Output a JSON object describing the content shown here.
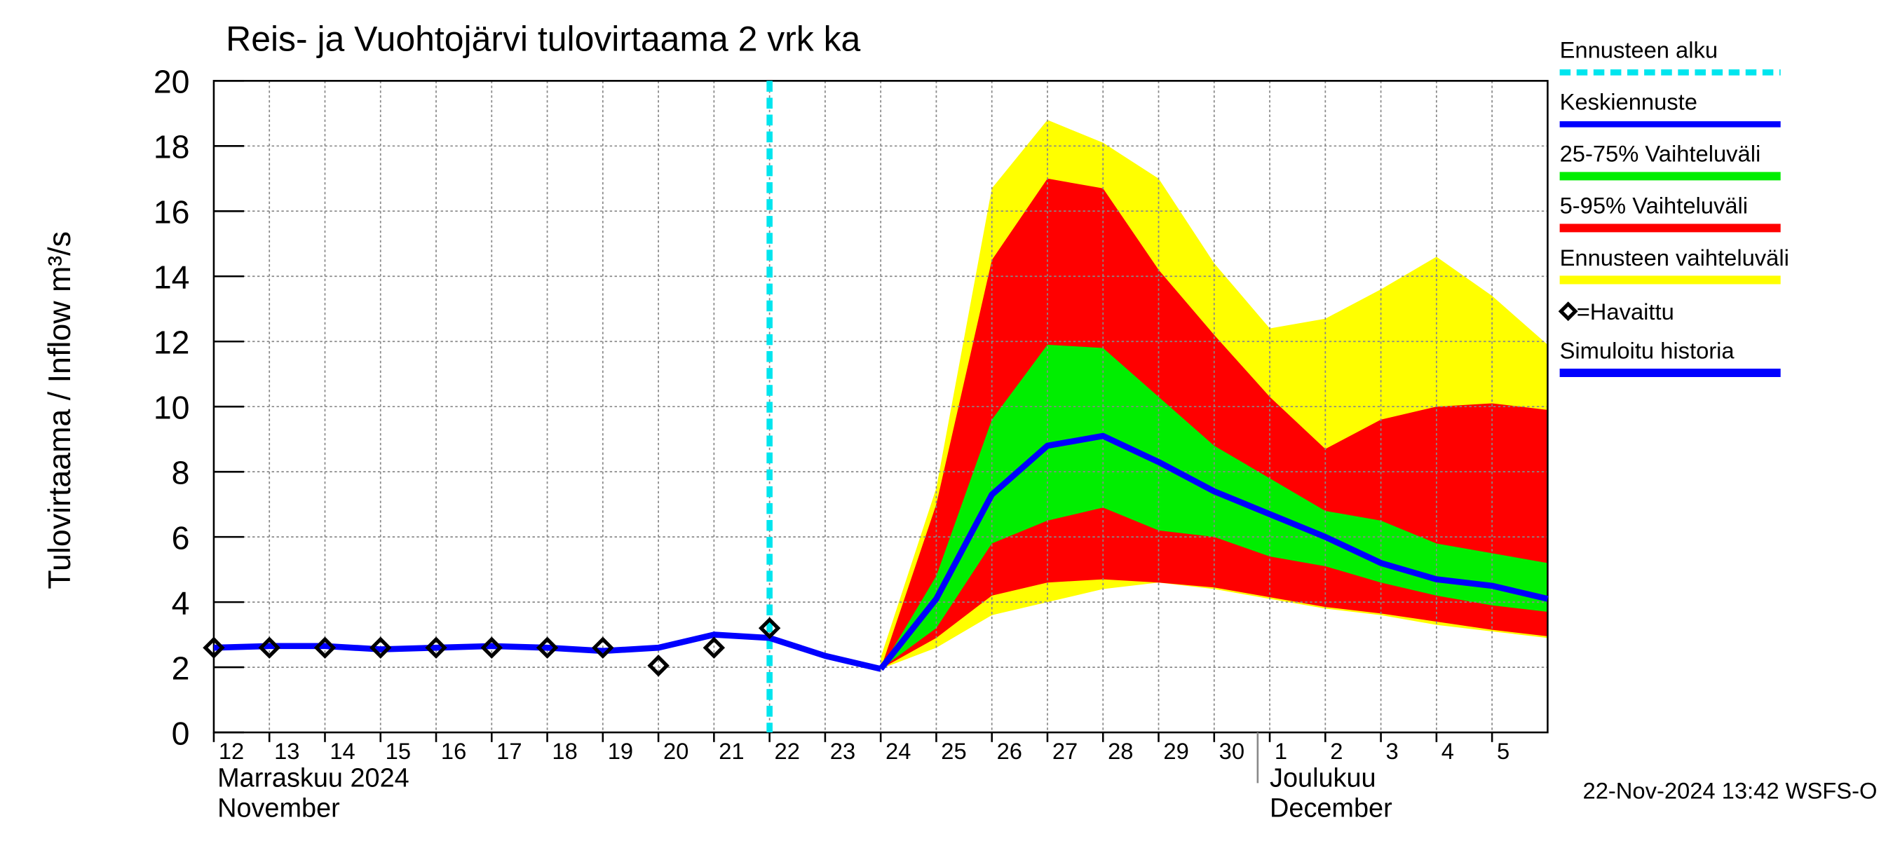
{
  "chart_data": {
    "type": "line",
    "title": "Reis- ja Vuohtojärvi tulovirtaama  2 vrk ka",
    "ylabel": "Tulovirtaama / Inflow    m³/s",
    "ylim": [
      0,
      20
    ],
    "yticks": [
      0,
      2,
      4,
      6,
      8,
      10,
      12,
      14,
      16,
      18,
      20
    ],
    "xlim": [
      "2024-11-12",
      "2024-12-06"
    ],
    "xticks": [
      {
        "value": "2024-11-12",
        "label": "12"
      },
      {
        "value": "2024-11-13",
        "label": "13"
      },
      {
        "value": "2024-11-14",
        "label": "14"
      },
      {
        "value": "2024-11-15",
        "label": "15"
      },
      {
        "value": "2024-11-16",
        "label": "16"
      },
      {
        "value": "2024-11-17",
        "label": "17"
      },
      {
        "value": "2024-11-18",
        "label": "18"
      },
      {
        "value": "2024-11-19",
        "label": "19"
      },
      {
        "value": "2024-11-20",
        "label": "20"
      },
      {
        "value": "2024-11-21",
        "label": "21"
      },
      {
        "value": "2024-11-22",
        "label": "22"
      },
      {
        "value": "2024-11-23",
        "label": "23"
      },
      {
        "value": "2024-11-24",
        "label": "24"
      },
      {
        "value": "2024-11-25",
        "label": "25"
      },
      {
        "value": "2024-11-26",
        "label": "26"
      },
      {
        "value": "2024-11-27",
        "label": "27"
      },
      {
        "value": "2024-11-28",
        "label": "28"
      },
      {
        "value": "2024-11-29",
        "label": "29"
      },
      {
        "value": "2024-11-30",
        "label": "30"
      },
      {
        "value": "2024-12-01",
        "label": "1"
      },
      {
        "value": "2024-12-02",
        "label": "2"
      },
      {
        "value": "2024-12-03",
        "label": "3"
      },
      {
        "value": "2024-12-04",
        "label": "4"
      },
      {
        "value": "2024-12-05",
        "label": "5"
      }
    ],
    "grid": true,
    "months": [
      {
        "x": "2024-11-12",
        "lines": [
          "Marraskuu 2024",
          "November"
        ]
      },
      {
        "x": "2024-12-01",
        "lines": [
          "Joulukuu",
          "December"
        ]
      }
    ],
    "forecast_start": {
      "name": "Ennusteen alku",
      "x": "2024-11-22",
      "color": "#00e5ee"
    },
    "bands": [
      {
        "name": "Ennusteen vaihteluväli",
        "color": "#ffff00",
        "x": [
          "2024-11-24",
          "2024-11-25",
          "2024-11-26",
          "2024-11-27",
          "2024-11-28",
          "2024-11-29",
          "2024-11-30",
          "2024-12-01",
          "2024-12-02",
          "2024-12-03",
          "2024-12-04",
          "2024-12-05",
          "2024-12-06"
        ],
        "upper": [
          2.3,
          7.5,
          16.7,
          18.8,
          18.1,
          17.0,
          14.4,
          12.4,
          12.7,
          13.6,
          14.6,
          13.4,
          11.9
        ],
        "lower": [
          1.95,
          2.6,
          3.6,
          4.0,
          4.4,
          4.6,
          4.4,
          4.1,
          3.8,
          3.6,
          3.3,
          3.1,
          2.9
        ]
      },
      {
        "name": "5-95% Vaihteluväli",
        "color": "#ff0000",
        "x": [
          "2024-11-24",
          "2024-11-25",
          "2024-11-26",
          "2024-11-27",
          "2024-11-28",
          "2024-11-29",
          "2024-11-30",
          "2024-12-01",
          "2024-12-02",
          "2024-12-03",
          "2024-12-04",
          "2024-12-05",
          "2024-12-06"
        ],
        "upper": [
          1.95,
          7.0,
          14.5,
          17.0,
          16.7,
          14.2,
          12.2,
          10.3,
          8.7,
          9.6,
          10.0,
          10.1,
          9.9
        ],
        "lower": [
          1.95,
          2.9,
          4.2,
          4.6,
          4.7,
          4.6,
          4.45,
          4.15,
          3.85,
          3.65,
          3.4,
          3.15,
          2.95
        ]
      },
      {
        "name": "25-75% Vaihteluväli",
        "color": "#00ee00",
        "x": [
          "2024-11-24",
          "2024-11-25",
          "2024-11-26",
          "2024-11-27",
          "2024-11-28",
          "2024-11-29",
          "2024-11-30",
          "2024-12-01",
          "2024-12-02",
          "2024-12-03",
          "2024-12-04",
          "2024-12-05",
          "2024-12-06"
        ],
        "upper": [
          1.95,
          4.8,
          9.6,
          11.9,
          11.8,
          10.3,
          8.8,
          7.8,
          6.8,
          6.5,
          5.8,
          5.5,
          5.2
        ],
        "lower": [
          1.95,
          3.2,
          5.8,
          6.5,
          6.9,
          6.2,
          6.0,
          5.4,
          5.1,
          4.6,
          4.2,
          3.9,
          3.7
        ]
      }
    ],
    "series": [
      {
        "name": "Keskiennuste",
        "color": "#0000ff",
        "x": [
          "2024-11-24",
          "2024-11-25",
          "2024-11-26",
          "2024-11-27",
          "2024-11-28",
          "2024-11-29",
          "2024-11-30",
          "2024-12-01",
          "2024-12-02",
          "2024-12-03",
          "2024-12-04",
          "2024-12-05",
          "2024-12-06"
        ],
        "values": [
          1.95,
          4.1,
          7.3,
          8.8,
          9.1,
          8.3,
          7.4,
          6.7,
          6.0,
          5.2,
          4.7,
          4.5,
          4.1
        ]
      },
      {
        "name": "Simuloitu historia",
        "color": "#0000ff",
        "x": [
          "2024-11-12",
          "2024-11-13",
          "2024-11-14",
          "2024-11-15",
          "2024-11-16",
          "2024-11-17",
          "2024-11-18",
          "2024-11-19",
          "2024-11-20",
          "2024-11-21",
          "2024-11-22",
          "2024-11-23",
          "2024-11-24"
        ],
        "values": [
          2.6,
          2.65,
          2.65,
          2.55,
          2.6,
          2.65,
          2.6,
          2.5,
          2.6,
          3.0,
          2.9,
          2.35,
          1.95
        ]
      }
    ],
    "observed": {
      "name": "=Havaittu",
      "color": "#000000",
      "x": [
        "2024-11-12",
        "2024-11-13",
        "2024-11-14",
        "2024-11-15",
        "2024-11-16",
        "2024-11-17",
        "2024-11-18",
        "2024-11-19",
        "2024-11-20",
        "2024-11-21",
        "2024-11-22"
      ],
      "values": [
        2.6,
        2.6,
        2.6,
        2.6,
        2.6,
        2.6,
        2.6,
        2.6,
        2.05,
        2.6,
        3.2
      ]
    },
    "footer": "22-Nov-2024 13:42 WSFS-O"
  }
}
